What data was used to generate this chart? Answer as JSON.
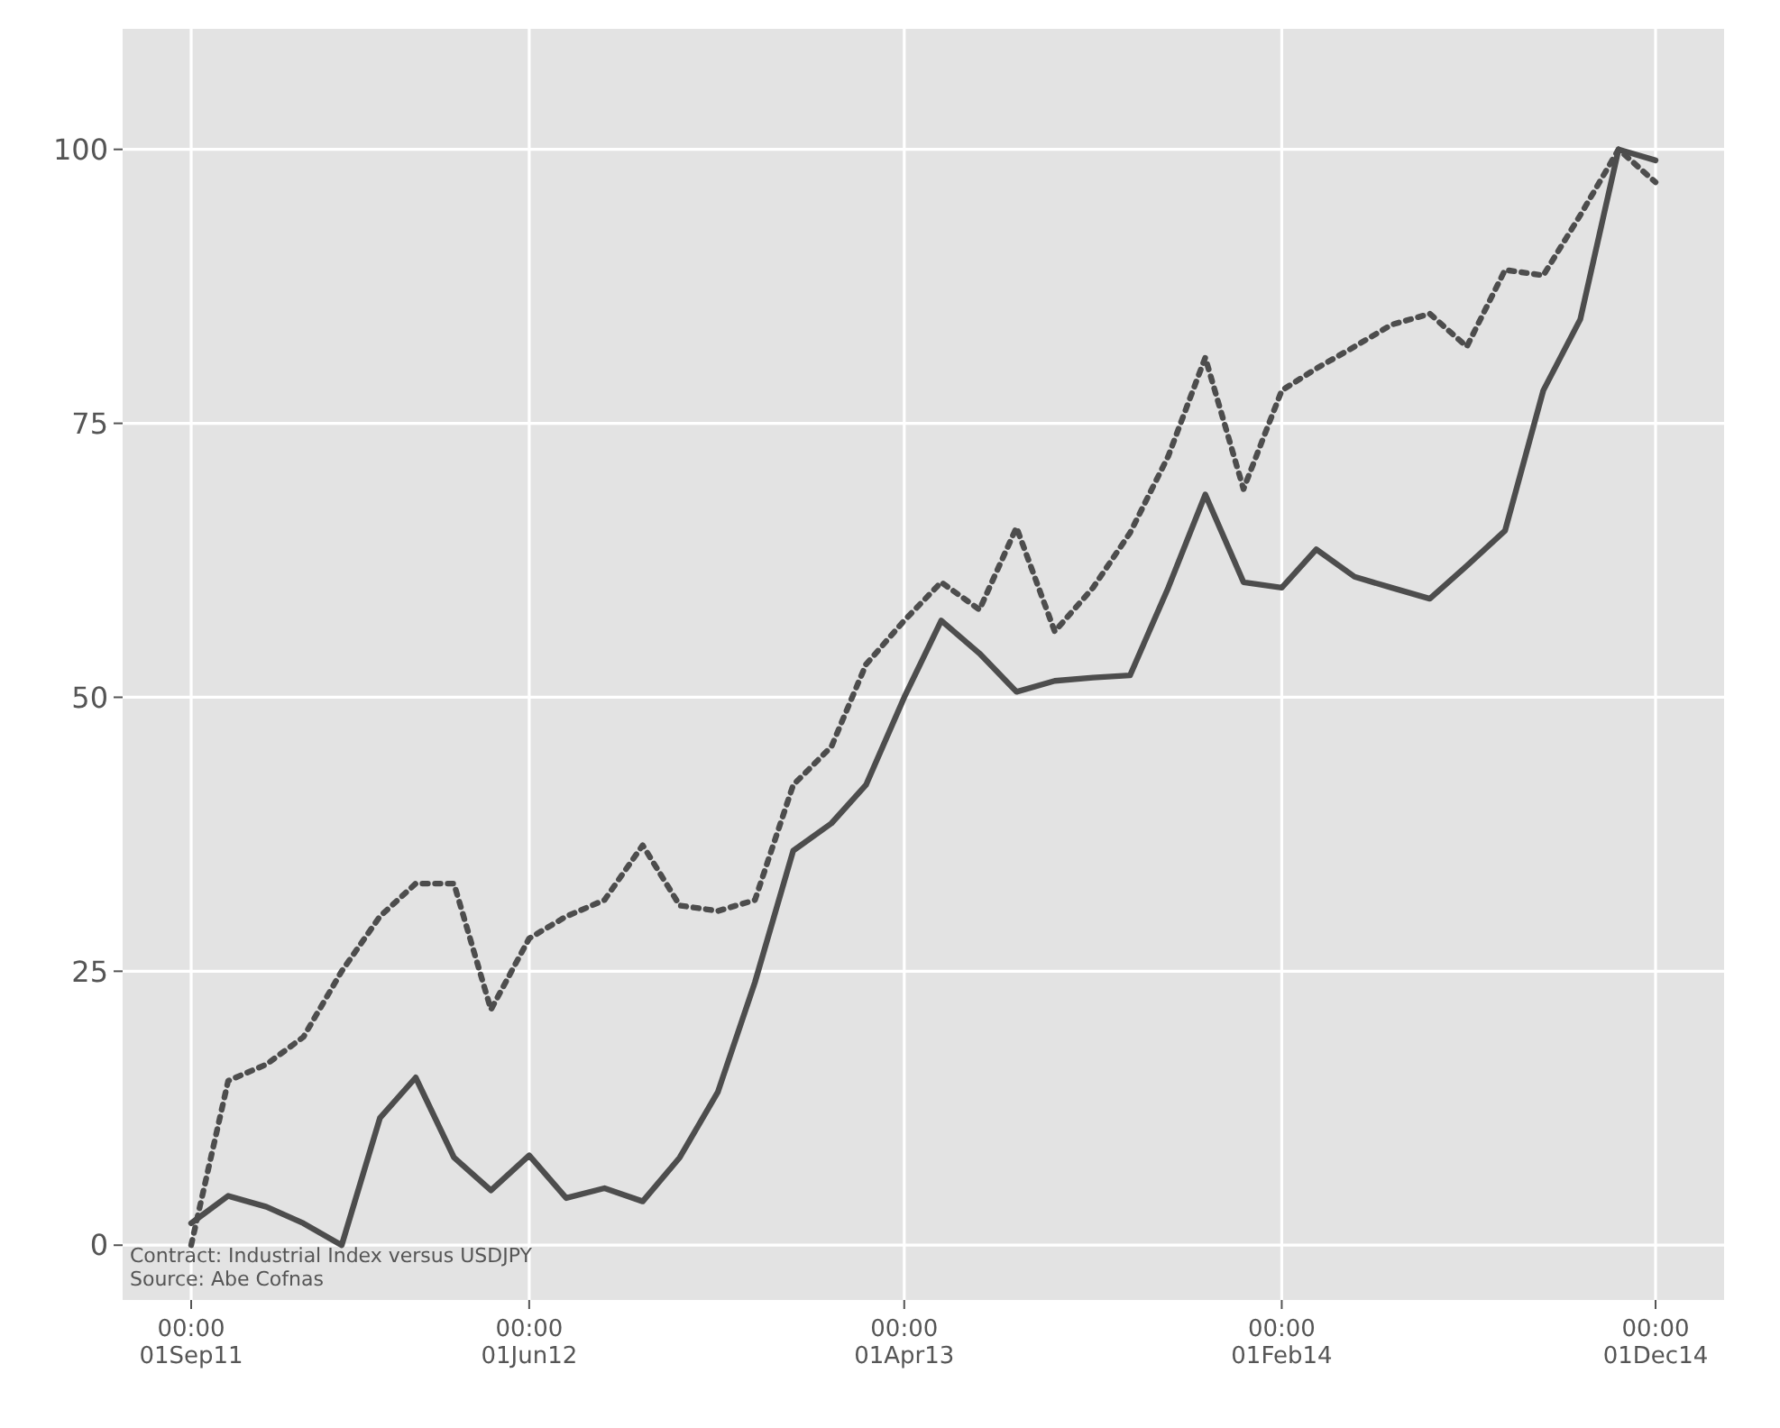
{
  "chart_data": {
    "type": "line",
    "x": [
      "2011-09",
      "2011-10",
      "2011-11",
      "2011-12",
      "2012-01",
      "2012-02",
      "2012-03",
      "2012-04",
      "2012-05",
      "2012-06",
      "2012-07",
      "2012-08",
      "2012-09",
      "2012-10",
      "2012-11",
      "2012-12",
      "2013-01",
      "2013-02",
      "2013-03",
      "2013-04",
      "2013-05",
      "2013-06",
      "2013-07",
      "2013-08",
      "2013-09",
      "2013-10",
      "2013-11",
      "2013-12",
      "2014-01",
      "2014-02",
      "2014-03",
      "2014-04",
      "2014-05",
      "2014-06",
      "2014-07",
      "2014-08",
      "2014-09",
      "2014-10",
      "2014-11",
      "2014-12"
    ],
    "series": [
      {
        "color": "#4d4d4d",
        "line_style": "solid",
        "values": [
          2,
          4.5,
          3.5,
          2,
          0,
          11.6,
          15.3,
          8,
          5,
          8.2,
          4.3,
          5.2,
          4,
          8,
          14,
          24,
          36,
          38.5,
          42,
          50,
          57,
          54,
          50.5,
          51.5,
          51.8,
          52,
          60,
          68.5,
          60.5,
          60,
          63.5,
          61,
          60,
          59,
          62,
          65.2,
          78,
          84.5,
          100,
          99
        ]
      },
      {
        "color": "#4d4d4d",
        "line_style": "dotted",
        "values": [
          0,
          15,
          16.5,
          19,
          25,
          30,
          33,
          33,
          21.5,
          28,
          30,
          31.5,
          36.5,
          31,
          30.5,
          31.5,
          42,
          45.5,
          53,
          57,
          60.5,
          58,
          65.5,
          56,
          60,
          65,
          72,
          81,
          69,
          78,
          80,
          82,
          84,
          85,
          82,
          89,
          88.5,
          94,
          100,
          97
        ]
      }
    ],
    "xlim": [
      "2011-09",
      "2014-12"
    ],
    "xticks": [
      {
        "value": "2011-09",
        "label": "00:00\n01Sep11"
      },
      {
        "value": "2012-06",
        "label": "00:00\n01Jun12"
      },
      {
        "value": "2013-04",
        "label": "00:00\n01Apr13"
      },
      {
        "value": "2014-02",
        "label": "00:00\n01Feb14"
      },
      {
        "value": "2014-12",
        "label": "00:00\n01Dec14"
      }
    ],
    "ylim": [
      -5,
      111
    ],
    "yticks": [
      0,
      25,
      50,
      75,
      100
    ],
    "grid": true,
    "annotations": [
      "Contract: Industrial Index versus USDJPY",
      "Source: Abe Cofnas"
    ]
  }
}
